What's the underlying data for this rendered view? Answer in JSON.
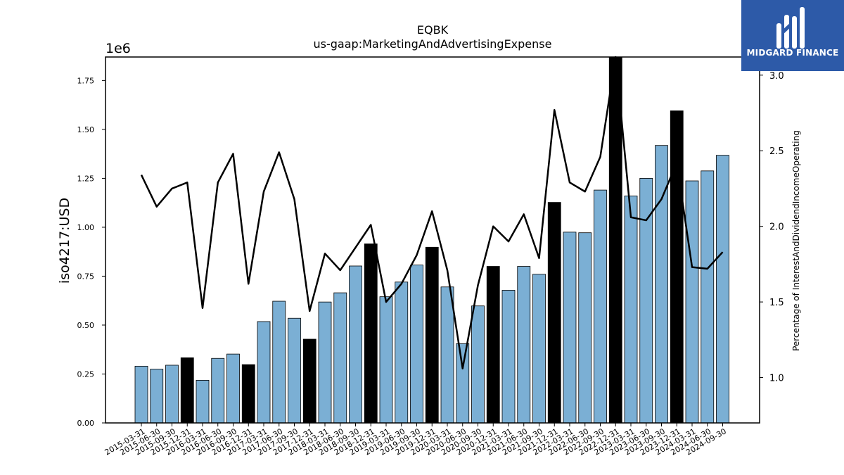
{
  "chart_data": {
    "type": "bar",
    "title": "EQBK",
    "subtitle": "us-gaap:MarketingAndAdvertisingExpense",
    "ylabel": "iso4217:USD",
    "y_offset_label": "1e6",
    "ylim": [
      0,
      1.87
    ],
    "yticks": [
      "0.00",
      "0.25",
      "0.50",
      "0.75",
      "1.00",
      "1.25",
      "1.50",
      "1.75"
    ],
    "y2label": "Percentage of InterestAndDividendIncomeOperating",
    "y2lim": [
      0.7,
      3.12
    ],
    "y2ticks": [
      "1.0",
      "1.5",
      "2.0",
      "2.5",
      "3.0"
    ],
    "categories": [
      "2015-03-31",
      "2015-06-30",
      "2015-09-30",
      "2015-12-31",
      "2016-03-31",
      "2016-06-30",
      "2016-09-30",
      "2016-12-31",
      "2017-03-31",
      "2017-06-30",
      "2017-09-30",
      "2017-12-31",
      "2018-03-31",
      "2018-06-30",
      "2018-09-30",
      "2018-12-31",
      "2019-03-31",
      "2019-06-30",
      "2019-09-30",
      "2019-12-31",
      "2020-03-31",
      "2020-06-30",
      "2020-09-30",
      "2020-12-31",
      "2021-03-31",
      "2021-06-30",
      "2021-09-30",
      "2021-12-31",
      "2022-03-31",
      "2022-06-30",
      "2022-09-30",
      "2022-12-31",
      "2023-03-31",
      "2023-06-30",
      "2023-09-30",
      "2023-12-31",
      "2024-03-31",
      "2024-06-30",
      "2024-09-30"
    ],
    "series": [
      {
        "type": "bar",
        "values": [
          0.29,
          0.275,
          0.295,
          0.333,
          0.218,
          0.33,
          0.352,
          0.298,
          0.518,
          0.622,
          0.535,
          0.428,
          0.618,
          0.665,
          0.802,
          0.915,
          0.645,
          0.72,
          0.807,
          0.898,
          0.695,
          0.405,
          0.598,
          0.8,
          0.678,
          0.8,
          0.76,
          1.127,
          0.975,
          0.972,
          1.19,
          1.875,
          1.16,
          1.25,
          1.418,
          1.595,
          1.237,
          1.288,
          1.368
        ],
        "highlight_year_end": true,
        "colors": {
          "regular": "#7bafd4",
          "year_end": "#000000",
          "edge": "#000000"
        }
      },
      {
        "type": "line",
        "axis": "right",
        "color": "#000000",
        "values": [
          2.34,
          2.13,
          2.25,
          2.29,
          1.46,
          2.29,
          2.48,
          1.62,
          2.23,
          2.49,
          2.18,
          1.44,
          1.82,
          1.71,
          1.86,
          2.01,
          1.5,
          1.62,
          1.81,
          2.1,
          1.71,
          1.06,
          1.61,
          2.0,
          1.9,
          2.08,
          1.79,
          2.77,
          2.29,
          2.23,
          2.46,
          3.12,
          2.06,
          2.04,
          2.18,
          2.42,
          1.73,
          1.72,
          1.83
        ]
      }
    ]
  },
  "branding": {
    "logo_text": "MIDGARD FINANCE",
    "logo_icon": "midgard-bars-logo-icon",
    "logo_bg": "#2d5aa8"
  }
}
